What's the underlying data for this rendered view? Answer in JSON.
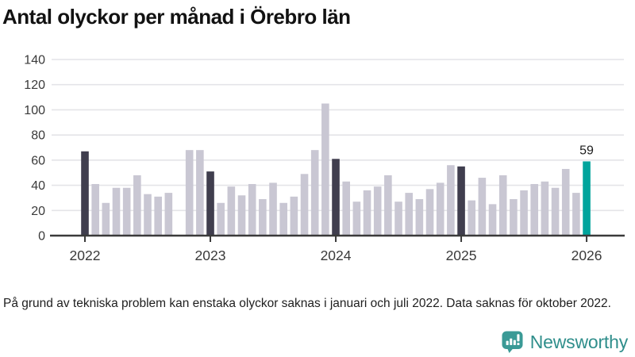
{
  "title": "Antal olyckor per månad i Örebro län",
  "footnote": "På grund av tekniska problem kan enstaka olyckor saknas i januari och juli 2022. Data saknas för oktober 2022.",
  "logo": {
    "text": "Newsworthy"
  },
  "colors": {
    "bar": "#c9c7d3",
    "bar_highlight": "#403e4e",
    "bar_current": "#00a49c",
    "axis": "#3a3a3a",
    "gridline": "#e4e4e8",
    "title_text": "#121212",
    "tick_text": "#3a3a3a",
    "footnote_text": "#1e1e1e",
    "annotation_text": "#1c1c1c",
    "logo_teal": "#2f8e8b",
    "logo_icon_teal": "#3a9a96"
  },
  "chart_data": {
    "type": "bar",
    "title": "Antal olyckor per månad i Örebro län",
    "x": [
      "2022-01",
      "2022-02",
      "2022-03",
      "2022-04",
      "2022-05",
      "2022-06",
      "2022-07",
      "2022-08",
      "2022-09",
      "2022-10",
      "2022-11",
      "2022-12",
      "2023-01",
      "2023-02",
      "2023-03",
      "2023-04",
      "2023-05",
      "2023-06",
      "2023-07",
      "2023-08",
      "2023-09",
      "2023-10",
      "2023-11",
      "2023-12",
      "2024-01",
      "2024-02",
      "2024-03",
      "2024-04",
      "2024-05",
      "2024-06",
      "2024-07",
      "2024-08",
      "2024-09",
      "2024-10",
      "2024-11",
      "2024-12",
      "2025-01",
      "2025-02",
      "2025-03",
      "2025-04",
      "2025-05",
      "2025-06",
      "2025-07",
      "2025-08",
      "2025-09",
      "2025-10",
      "2025-11",
      "2025-12",
      "2026-01"
    ],
    "values": [
      67,
      41,
      26,
      38,
      38,
      48,
      33,
      31,
      34,
      null,
      68,
      68,
      51,
      26,
      39,
      32,
      41,
      29,
      42,
      26,
      31,
      49,
      68,
      105,
      61,
      43,
      27,
      36,
      39,
      48,
      27,
      34,
      29,
      37,
      42,
      56,
      55,
      28,
      46,
      25,
      48,
      29,
      36,
      41,
      43,
      38,
      53,
      34,
      59
    ],
    "missing_months": [
      "2022-10"
    ],
    "ylim": [
      0,
      140
    ],
    "yticks": [
      0,
      20,
      40,
      60,
      80,
      100,
      120,
      140
    ],
    "xtick_indices": [
      0,
      12,
      24,
      36,
      48
    ],
    "xtick_labels": [
      "2022",
      "2023",
      "2024",
      "2025",
      "2026"
    ],
    "highlight_indices": [
      0,
      12,
      24,
      36
    ],
    "current_index": 48,
    "annotation": {
      "index": 48,
      "label": "59"
    },
    "grid": "horizontal",
    "legend": "none"
  }
}
